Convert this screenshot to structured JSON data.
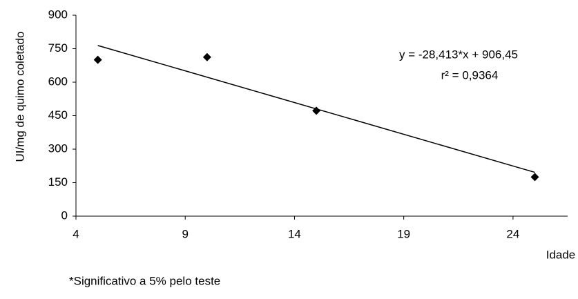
{
  "chart_data": {
    "type": "scatter",
    "y_label": "UI/mg de quimo coletado",
    "x_label": "Idade",
    "x": [
      5,
      10,
      15,
      25
    ],
    "values": [
      700,
      712,
      472,
      175
    ],
    "color": "#000000",
    "xlim": [
      4,
      26.5
    ],
    "xticks": [
      4,
      9,
      14,
      19,
      24
    ],
    "ylim": [
      0,
      900
    ],
    "yticks": [
      0,
      150,
      300,
      450,
      600,
      750,
      900
    ],
    "trendline": {
      "slope": -28.413,
      "intercept": 906.45,
      "equation": "y = -28,413*x + 906,45",
      "r2": "r² = 0,9364"
    },
    "footnote": "*Significativo a 5% pelo teste"
  }
}
